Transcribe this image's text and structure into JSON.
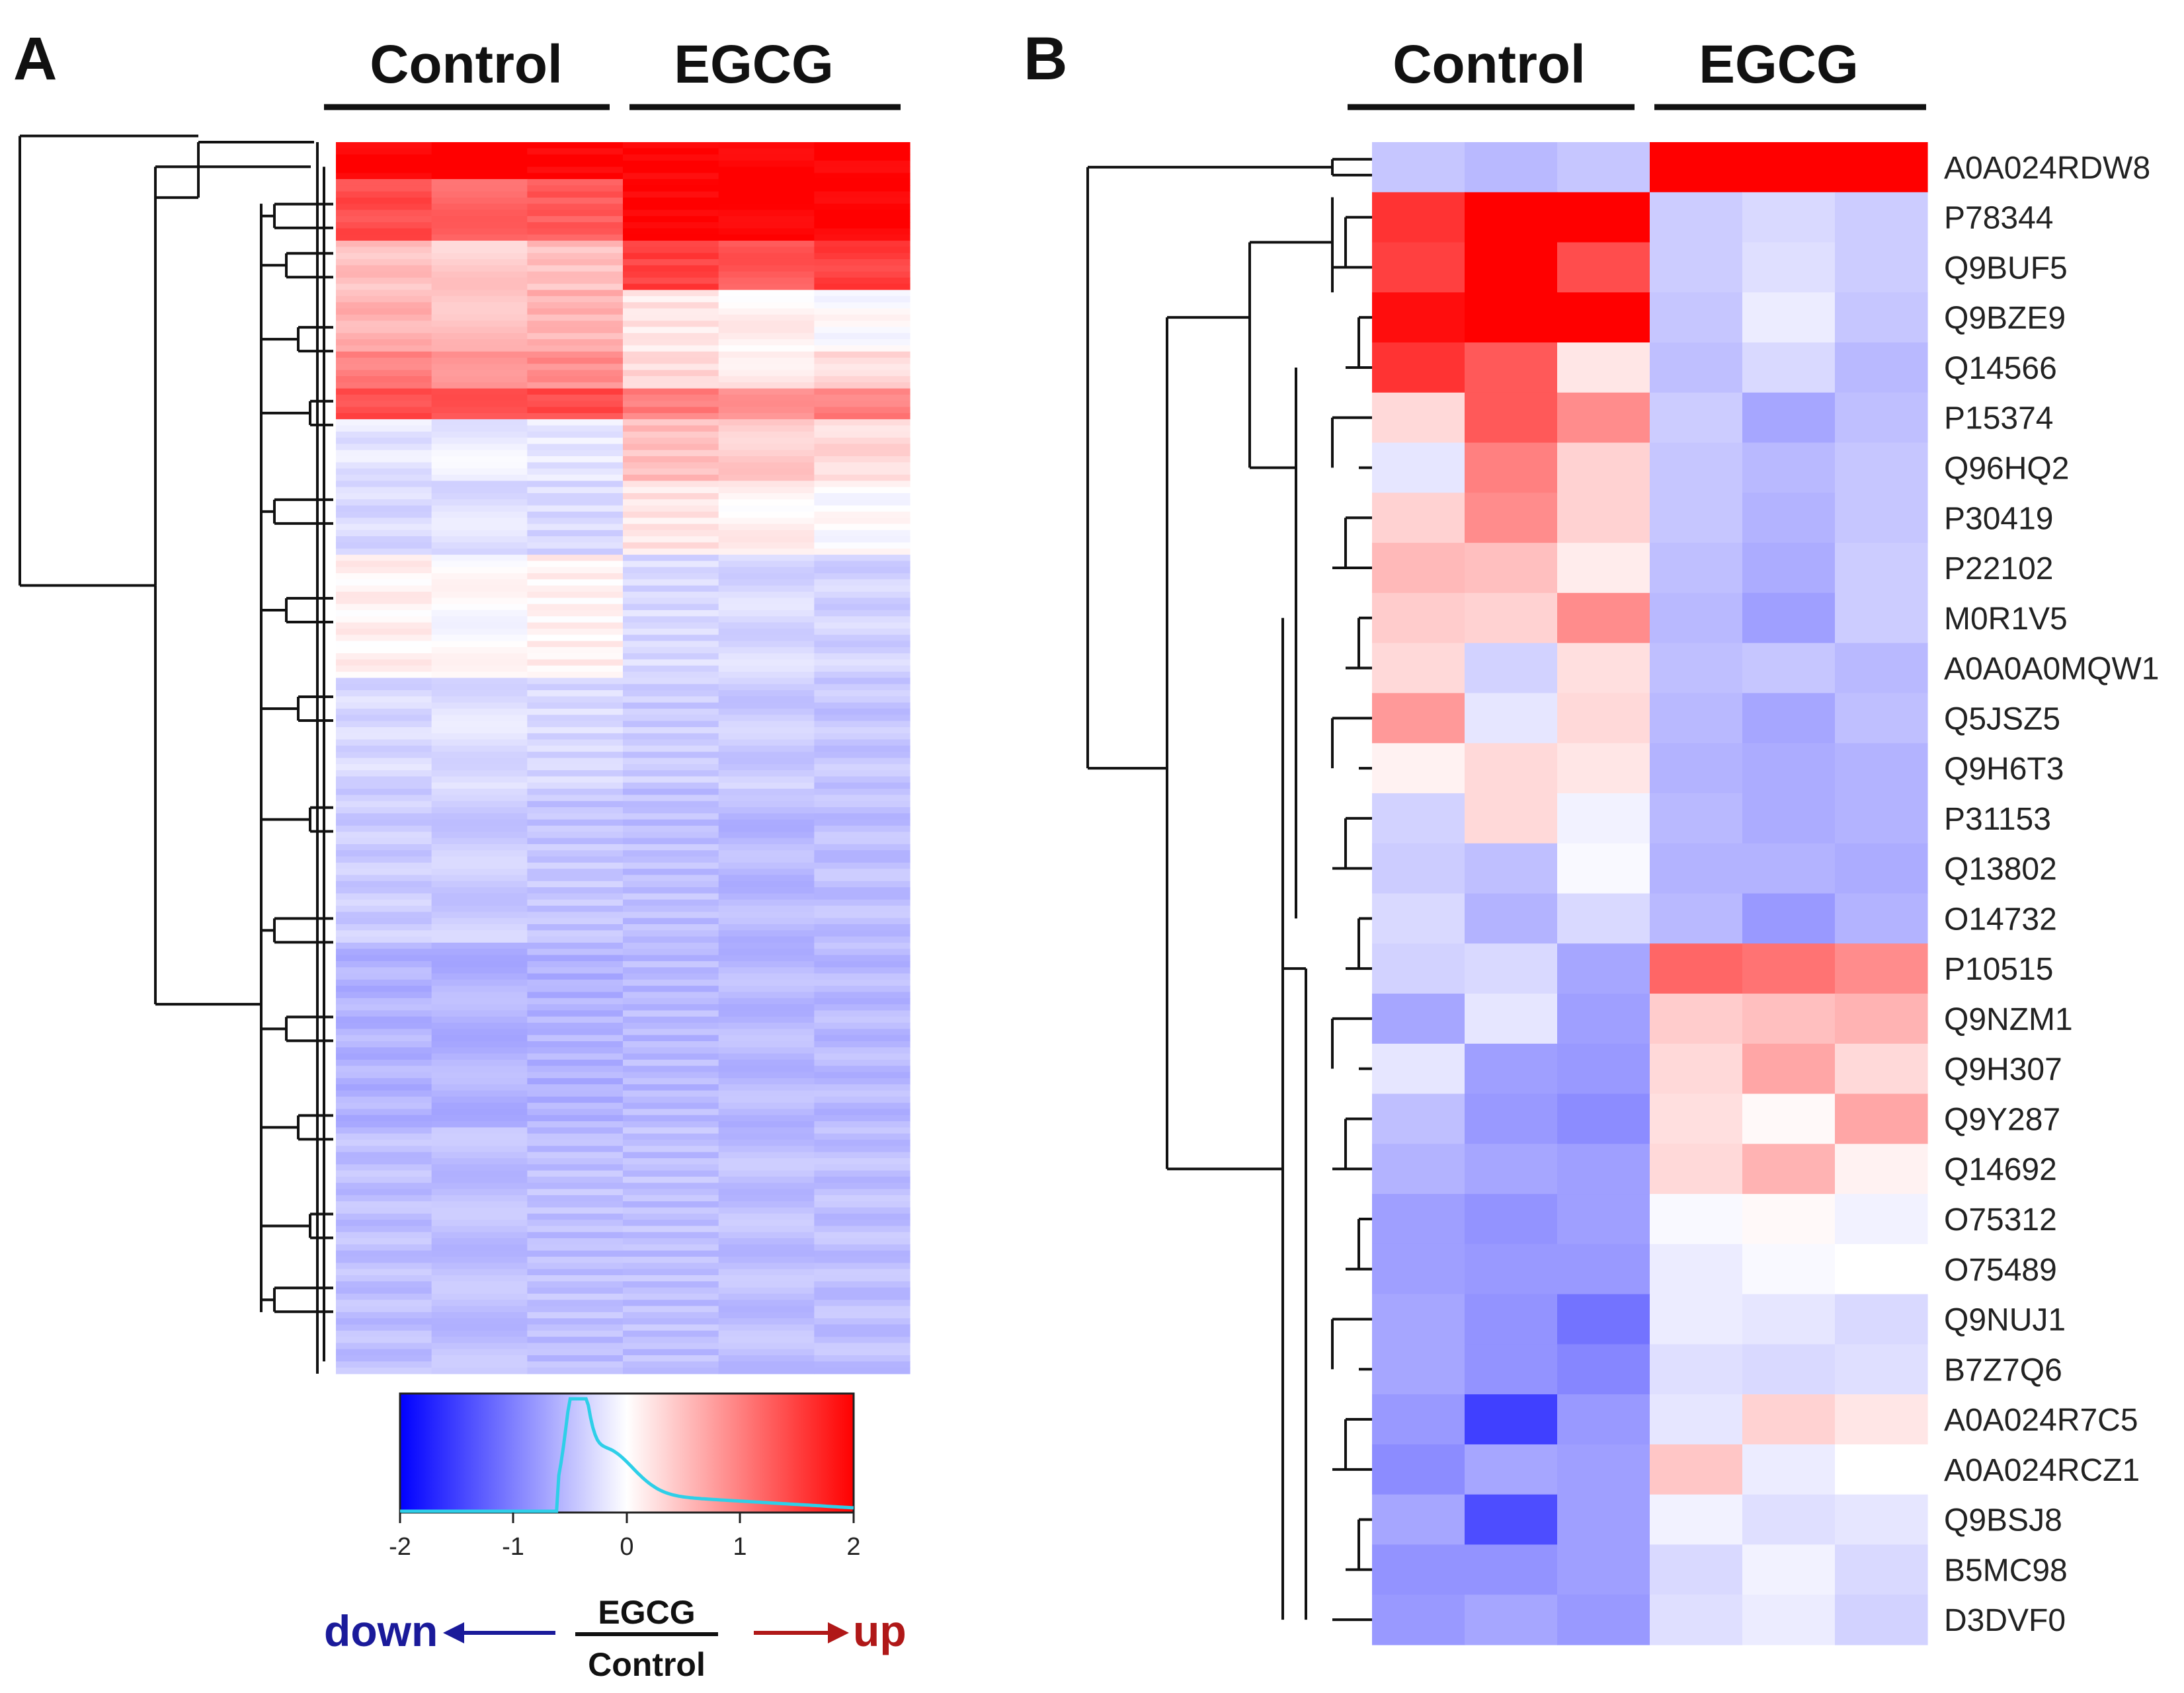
{
  "panels": {
    "a": {
      "label": "A",
      "groups": [
        "Control",
        "EGCG"
      ]
    },
    "b": {
      "label": "B",
      "groups": [
        "Control",
        "EGCG"
      ]
    }
  },
  "colors": {
    "low": "#0000ff",
    "mid": "#ffffff",
    "high": "#ff0000",
    "histogram": "#2ecfe8",
    "down_arrow": "#1a1a9a",
    "up_arrow": "#b01818"
  },
  "legend": {
    "ticks": [
      "-2",
      "-1",
      "0",
      "1",
      "2"
    ],
    "down_label": "down",
    "up_label": "up",
    "ratio_numerator": "EGCG",
    "ratio_denominator": "Control"
  },
  "chart_data": [
    {
      "type": "heatmap",
      "panel": "A",
      "title": "",
      "columns": [
        "Control",
        "Control",
        "Control",
        "EGCG",
        "EGCG",
        "EGCG"
      ],
      "value_range": [
        -2,
        2
      ],
      "row_profiles": [
        {
          "rows": 6,
          "values": [
            2.0,
            2.0,
            2.0,
            2.0,
            2.0,
            2.0
          ]
        },
        {
          "rows": 10,
          "values": [
            1.4,
            1.2,
            1.3,
            2.0,
            2.0,
            2.0
          ]
        },
        {
          "rows": 8,
          "values": [
            0.5,
            0.4,
            0.5,
            1.5,
            1.3,
            1.5
          ]
        },
        {
          "rows": 10,
          "values": [
            0.6,
            0.5,
            0.6,
            0.2,
            0.1,
            0.0
          ]
        },
        {
          "rows": 6,
          "values": [
            1.0,
            0.9,
            0.9,
            0.3,
            0.2,
            0.3
          ]
        },
        {
          "rows": 5,
          "values": [
            1.4,
            1.3,
            1.4,
            1.0,
            0.8,
            1.0
          ]
        },
        {
          "rows": 10,
          "values": [
            -0.2,
            -0.15,
            -0.2,
            0.5,
            0.4,
            0.3
          ]
        },
        {
          "rows": 12,
          "values": [
            -0.3,
            -0.25,
            -0.3,
            0.2,
            0.1,
            0.0
          ]
        },
        {
          "rows": 20,
          "values": [
            0.1,
            0.0,
            0.1,
            -0.3,
            -0.3,
            -0.35
          ]
        },
        {
          "rows": 18,
          "values": [
            -0.3,
            -0.25,
            -0.3,
            -0.4,
            -0.4,
            -0.45
          ]
        },
        {
          "rows": 25,
          "values": [
            -0.4,
            -0.4,
            -0.45,
            -0.5,
            -0.55,
            -0.5
          ]
        },
        {
          "rows": 30,
          "values": [
            -0.6,
            -0.6,
            -0.6,
            -0.55,
            -0.55,
            -0.55
          ]
        },
        {
          "rows": 40,
          "values": [
            -0.5,
            -0.5,
            -0.5,
            -0.5,
            -0.5,
            -0.5
          ]
        }
      ]
    },
    {
      "type": "heatmap",
      "panel": "B",
      "title": "",
      "columns": [
        "Control",
        "Control",
        "Control",
        "EGCG",
        "EGCG",
        "EGCG"
      ],
      "value_range": [
        -2,
        2
      ],
      "rows": [
        "A0A024RDW8",
        "P78344",
        "Q9BUF5",
        "Q9BZE9",
        "Q14566",
        "P15374",
        "Q96HQ2",
        "P30419",
        "P22102",
        "M0R1V5",
        "A0A0A0MQW1",
        "Q5JSZ5",
        "Q9H6T3",
        "P31153",
        "Q13802",
        "O14732",
        "P10515",
        "Q9NZM1",
        "Q9H307",
        "Q9Y287",
        "Q14692",
        "O75312",
        "O75489",
        "Q9NUJ1",
        "B7Z7Q6",
        "A0A024R7C5",
        "A0A024RCZ1",
        "Q9BSJ8",
        "B5MC98",
        "D3DVF0"
      ],
      "values": [
        [
          -0.45,
          -0.55,
          -0.45,
          2.0,
          2.0,
          2.0
        ],
        [
          1.6,
          2.0,
          2.0,
          -0.4,
          -0.3,
          -0.4
        ],
        [
          1.5,
          2.0,
          1.4,
          -0.4,
          -0.25,
          -0.4
        ],
        [
          1.9,
          2.0,
          2.0,
          -0.45,
          -0.15,
          -0.45
        ],
        [
          1.6,
          1.3,
          0.2,
          -0.5,
          -0.3,
          -0.55
        ],
        [
          0.3,
          1.3,
          0.9,
          -0.4,
          -0.7,
          -0.5
        ],
        [
          -0.2,
          1.0,
          0.35,
          -0.45,
          -0.55,
          -0.45
        ],
        [
          0.35,
          0.9,
          0.35,
          -0.45,
          -0.6,
          -0.45
        ],
        [
          0.55,
          0.5,
          0.15,
          -0.5,
          -0.65,
          -0.4
        ],
        [
          0.4,
          0.35,
          0.9,
          -0.55,
          -0.75,
          -0.4
        ],
        [
          0.3,
          -0.35,
          0.25,
          -0.5,
          -0.45,
          -0.55
        ],
        [
          0.8,
          -0.2,
          0.3,
          -0.55,
          -0.7,
          -0.5
        ],
        [
          0.1,
          0.3,
          0.2,
          -0.6,
          -0.65,
          -0.6
        ],
        [
          -0.35,
          0.3,
          -0.1,
          -0.55,
          -0.65,
          -0.6
        ],
        [
          -0.4,
          -0.5,
          -0.05,
          -0.6,
          -0.6,
          -0.65
        ],
        [
          -0.3,
          -0.6,
          -0.3,
          -0.55,
          -0.8,
          -0.6
        ],
        [
          -0.35,
          -0.3,
          -0.7,
          1.2,
          1.1,
          0.9
        ],
        [
          -0.7,
          -0.2,
          -0.75,
          0.4,
          0.5,
          0.6
        ],
        [
          -0.2,
          -0.75,
          -0.8,
          0.3,
          0.7,
          0.3
        ],
        [
          -0.5,
          -0.8,
          -0.9,
          0.25,
          0.05,
          0.7
        ],
        [
          -0.6,
          -0.7,
          -0.75,
          0.3,
          0.6,
          0.1
        ],
        [
          -0.75,
          -0.85,
          -0.75,
          -0.05,
          0.05,
          -0.1
        ],
        [
          -0.75,
          -0.8,
          -0.8,
          -0.15,
          -0.05,
          0.0
        ],
        [
          -0.7,
          -0.85,
          -1.1,
          -0.15,
          -0.2,
          -0.3
        ],
        [
          -0.7,
          -0.85,
          -0.95,
          -0.25,
          -0.3,
          -0.25
        ],
        [
          -0.8,
          -1.5,
          -0.8,
          -0.2,
          0.35,
          0.2
        ],
        [
          -0.9,
          -0.7,
          -0.75,
          0.45,
          -0.15,
          0.0
        ],
        [
          -0.7,
          -1.4,
          -0.75,
          -0.1,
          -0.25,
          -0.2
        ],
        [
          -0.85,
          -0.85,
          -0.75,
          -0.3,
          -0.1,
          -0.3
        ],
        [
          -0.8,
          -0.7,
          -0.8,
          -0.25,
          -0.15,
          -0.35
        ]
      ]
    }
  ]
}
